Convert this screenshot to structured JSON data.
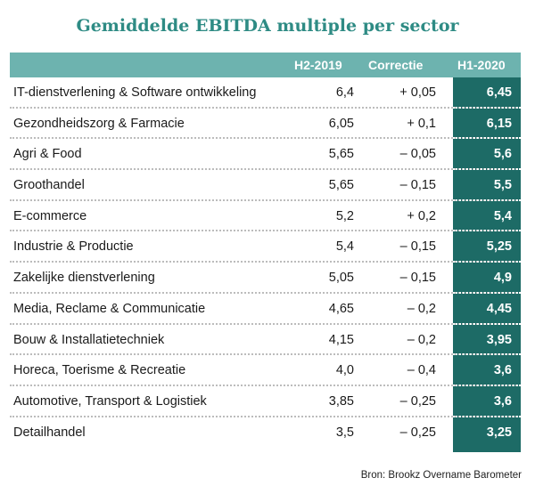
{
  "title": "Gemiddelde EBITDA multiple per sector",
  "columns": {
    "h2": "H2-2019",
    "correctie": "Correctie",
    "h1": "H1-2020"
  },
  "rows": [
    {
      "sector": "IT-dienstverlening & Software ontwikkeling",
      "h2": "6,4",
      "correctie": "+ 0,05",
      "h1": "6,45"
    },
    {
      "sector": "Gezondheidszorg & Farmacie",
      "h2": "6,05",
      "correctie": "+ 0,1",
      "h1": "6,15"
    },
    {
      "sector": "Agri & Food",
      "h2": "5,65",
      "correctie": "– 0,05",
      "h1": "5,6"
    },
    {
      "sector": "Groothandel",
      "h2": "5,65",
      "correctie": "– 0,15",
      "h1": "5,5"
    },
    {
      "sector": "E-commerce",
      "h2": "5,2",
      "correctie": "+ 0,2",
      "h1": "5,4"
    },
    {
      "sector": "Industrie & Productie",
      "h2": "5,4",
      "correctie": "– 0,15",
      "h1": "5,25"
    },
    {
      "sector": "Zakelijke dienstverlening",
      "h2": "5,05",
      "correctie": "– 0,15",
      "h1": "4,9"
    },
    {
      "sector": "Media, Reclame & Communicatie",
      "h2": "4,65",
      "correctie": "– 0,2",
      "h1": "4,45"
    },
    {
      "sector": "Bouw & Installatietechniek",
      "h2": "4,15",
      "correctie": "– 0,2",
      "h1": "3,95"
    },
    {
      "sector": "Horeca, Toerisme & Recreatie",
      "h2": "4,0",
      "correctie": "– 0,4",
      "h1": "3,6"
    },
    {
      "sector": "Automotive, Transport & Logistiek",
      "h2": "3,85",
      "correctie": "– 0,25",
      "h1": "3,6"
    },
    {
      "sector": "Detailhandel",
      "h2": "3,5",
      "correctie": "– 0,25",
      "h1": "3,25"
    }
  ],
  "source": "Bron: Brookz Overname Barometer",
  "colors": {
    "title": "#2e8b84",
    "header": "#6db3af",
    "highlight_column": "#1d6b66"
  }
}
